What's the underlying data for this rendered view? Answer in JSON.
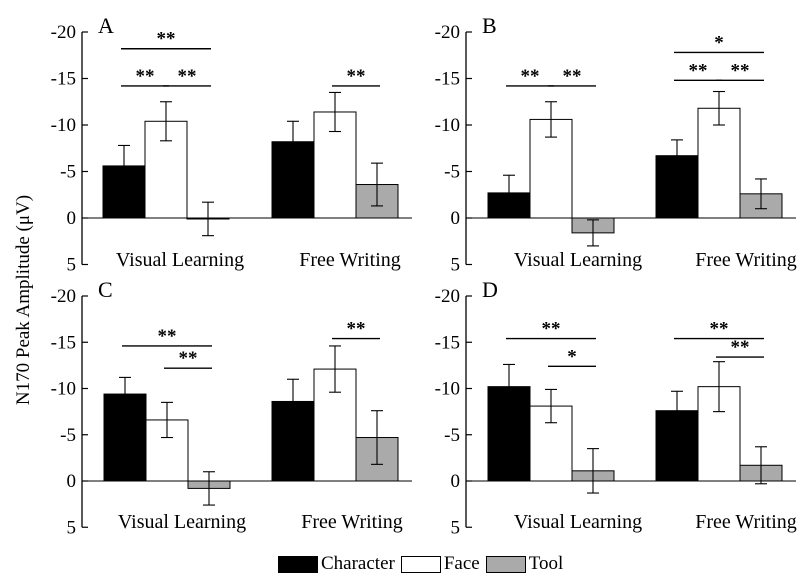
{
  "figure": {
    "ylabel": "N170 Peak Amplitude (μV)",
    "categories": [
      "Visual Learning",
      "Free Writing"
    ],
    "legend": [
      {
        "label": "Character",
        "color": "#000000"
      },
      {
        "label": "Face",
        "color": "#ffffff"
      },
      {
        "label": "Tool",
        "color": "#aaaaaa"
      }
    ],
    "y_ticks": [
      "-20",
      "-15",
      "-10",
      "-5",
      "0",
      "5"
    ]
  },
  "chart_data": [
    {
      "type": "bar",
      "panel": "A",
      "categories": [
        "Visual Learning",
        "Free Writing"
      ],
      "ylim": [
        5,
        -20
      ],
      "series": [
        {
          "name": "Character",
          "values": [
            -5.6,
            -8.2
          ],
          "errors": [
            2.2,
            2.2
          ]
        },
        {
          "name": "Face",
          "values": [
            -10.4,
            -11.4
          ],
          "errors": [
            2.1,
            2.1
          ]
        },
        {
          "name": "Tool",
          "values": [
            0.1,
            -3.6
          ],
          "errors": [
            1.8,
            2.3
          ]
        }
      ],
      "significance": [
        {
          "label": "**",
          "group": 0,
          "from": 0,
          "to": 2,
          "level": -18.2
        },
        {
          "label": "**",
          "group": 0,
          "from": 0,
          "to": 1,
          "level": -14.2
        },
        {
          "label": "**",
          "group": 0,
          "from": 1,
          "to": 2,
          "level": -14.2
        },
        {
          "label": "**",
          "group": 1,
          "from": 1,
          "to": 2,
          "level": -14.2
        }
      ]
    },
    {
      "type": "bar",
      "panel": "B",
      "categories": [
        "Visual Learning",
        "Free Writing"
      ],
      "ylim": [
        5,
        -20
      ],
      "series": [
        {
          "name": "Character",
          "values": [
            -2.7,
            -6.7
          ],
          "errors": [
            1.9,
            1.7
          ]
        },
        {
          "name": "Face",
          "values": [
            -10.6,
            -11.8
          ],
          "errors": [
            1.9,
            1.8
          ]
        },
        {
          "name": "Tool",
          "values": [
            1.6,
            -2.6
          ],
          "errors": [
            1.4,
            1.6
          ]
        }
      ],
      "significance": [
        {
          "label": "*",
          "group": 1,
          "from": 0,
          "to": 2,
          "level": -17.8
        },
        {
          "label": "**",
          "group": 0,
          "from": 0,
          "to": 1,
          "level": -14.2
        },
        {
          "label": "**",
          "group": 0,
          "from": 1,
          "to": 2,
          "level": -14.2
        },
        {
          "label": "**",
          "group": 1,
          "from": 0,
          "to": 1,
          "level": -14.8
        },
        {
          "label": "**",
          "group": 1,
          "from": 1,
          "to": 2,
          "level": -14.8
        }
      ]
    },
    {
      "type": "bar",
      "panel": "C",
      "categories": [
        "Visual Learning",
        "Free Writing"
      ],
      "ylim": [
        5,
        -20
      ],
      "series": [
        {
          "name": "Character",
          "values": [
            -9.4,
            -8.6
          ],
          "errors": [
            1.8,
            2.4
          ]
        },
        {
          "name": "Face",
          "values": [
            -6.6,
            -12.1
          ],
          "errors": [
            1.9,
            2.5
          ]
        },
        {
          "name": "Tool",
          "values": [
            0.8,
            -4.7
          ],
          "errors": [
            1.8,
            2.9
          ]
        }
      ],
      "significance": [
        {
          "label": "**",
          "group": 0,
          "from": 0,
          "to": 2,
          "level": -14.6
        },
        {
          "label": "**",
          "group": 0,
          "from": 1,
          "to": 2,
          "level": -12.2
        },
        {
          "label": "**",
          "group": 1,
          "from": 1,
          "to": 2,
          "level": -15.4
        }
      ]
    },
    {
      "type": "bar",
      "panel": "D",
      "categories": [
        "Visual Learning",
        "Free Writing"
      ],
      "ylim": [
        5,
        -20
      ],
      "series": [
        {
          "name": "Character",
          "values": [
            -10.2,
            -7.6
          ],
          "errors": [
            2.4,
            2.1
          ]
        },
        {
          "name": "Face",
          "values": [
            -8.1,
            -10.2
          ],
          "errors": [
            1.8,
            2.7
          ]
        },
        {
          "name": "Tool",
          "values": [
            -1.1,
            -1.7
          ],
          "errors": [
            2.4,
            2.0
          ]
        }
      ],
      "significance": [
        {
          "label": "**",
          "group": 0,
          "from": 0,
          "to": 2,
          "level": -15.4
        },
        {
          "label": "*",
          "group": 0,
          "from": 1,
          "to": 2,
          "level": -12.4
        },
        {
          "label": "**",
          "group": 1,
          "from": 0,
          "to": 2,
          "level": -15.4
        },
        {
          "label": "**",
          "group": 1,
          "from": 1,
          "to": 2,
          "level": -13.4
        }
      ]
    }
  ]
}
